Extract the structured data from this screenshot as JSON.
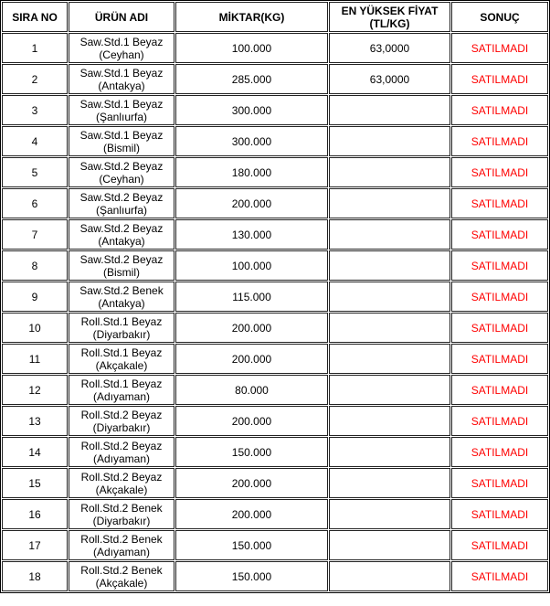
{
  "headers": [
    "SIRA NO",
    "ÜRÜN ADI",
    "MİKTAR(KG)",
    "EN YÜKSEK FİYAT (TL/KG)",
    "SONUÇ"
  ],
  "result_color": "#ff0000",
  "rows": [
    {
      "no": "1",
      "name": "Saw.Std.1 Beyaz",
      "place": "(Ceyhan)",
      "qty": "100.000",
      "price": "63,0000",
      "result": "SATILMADI"
    },
    {
      "no": "2",
      "name": "Saw.Std.1 Beyaz",
      "place": "(Antakya)",
      "qty": "285.000",
      "price": "63,0000",
      "result": "SATILMADI"
    },
    {
      "no": "3",
      "name": "Saw.Std.1 Beyaz",
      "place": "(Şanlıurfa)",
      "qty": "300.000",
      "price": "",
      "result": "SATILMADI"
    },
    {
      "no": "4",
      "name": "Saw.Std.1 Beyaz",
      "place": "(Bismil)",
      "qty": "300.000",
      "price": "",
      "result": "SATILMADI"
    },
    {
      "no": "5",
      "name": "Saw.Std.2 Beyaz",
      "place": "(Ceyhan)",
      "qty": "180.000",
      "price": "",
      "result": "SATILMADI"
    },
    {
      "no": "6",
      "name": "Saw.Std.2 Beyaz",
      "place": "(Şanlıurfa)",
      "qty": "200.000",
      "price": "",
      "result": "SATILMADI"
    },
    {
      "no": "7",
      "name": "Saw.Std.2 Beyaz",
      "place": "(Antakya)",
      "qty": "130.000",
      "price": "",
      "result": "SATILMADI"
    },
    {
      "no": "8",
      "name": "Saw.Std.2 Beyaz",
      "place": "(Bismil)",
      "qty": "100.000",
      "price": "",
      "result": "SATILMADI"
    },
    {
      "no": "9",
      "name": "Saw.Std.2 Benek",
      "place": "(Antakya)",
      "qty": "115.000",
      "price": "",
      "result": "SATILMADI"
    },
    {
      "no": "10",
      "name": "Roll.Std.1 Beyaz",
      "place": "(Diyarbakır)",
      "qty": "200.000",
      "price": "",
      "result": "SATILMADI"
    },
    {
      "no": "11",
      "name": "Roll.Std.1 Beyaz",
      "place": "(Akçakale)",
      "qty": "200.000",
      "price": "",
      "result": "SATILMADI"
    },
    {
      "no": "12",
      "name": "Roll.Std.1 Beyaz",
      "place": "(Adıyaman)",
      "qty": "80.000",
      "price": "",
      "result": "SATILMADI"
    },
    {
      "no": "13",
      "name": "Roll.Std.2 Beyaz",
      "place": "(Diyarbakır)",
      "qty": "200.000",
      "price": "",
      "result": "SATILMADI"
    },
    {
      "no": "14",
      "name": "Roll.Std.2 Beyaz",
      "place": "(Adıyaman)",
      "qty": "150.000",
      "price": "",
      "result": "SATILMADI"
    },
    {
      "no": "15",
      "name": "Roll.Std.2 Beyaz",
      "place": "(Akçakale)",
      "qty": "200.000",
      "price": "",
      "result": "SATILMADI"
    },
    {
      "no": "16",
      "name": "Roll.Std.2 Benek",
      "place": "(Diyarbakır)",
      "qty": "200.000",
      "price": "",
      "result": "SATILMADI"
    },
    {
      "no": "17",
      "name": "Roll.Std.2 Benek",
      "place": "(Adıyaman)",
      "qty": "150.000",
      "price": "",
      "result": "SATILMADI"
    },
    {
      "no": "18",
      "name": "Roll.Std.2 Benek",
      "place": "(Akçakale)",
      "qty": "150.000",
      "price": "",
      "result": "SATILMADI"
    }
  ]
}
